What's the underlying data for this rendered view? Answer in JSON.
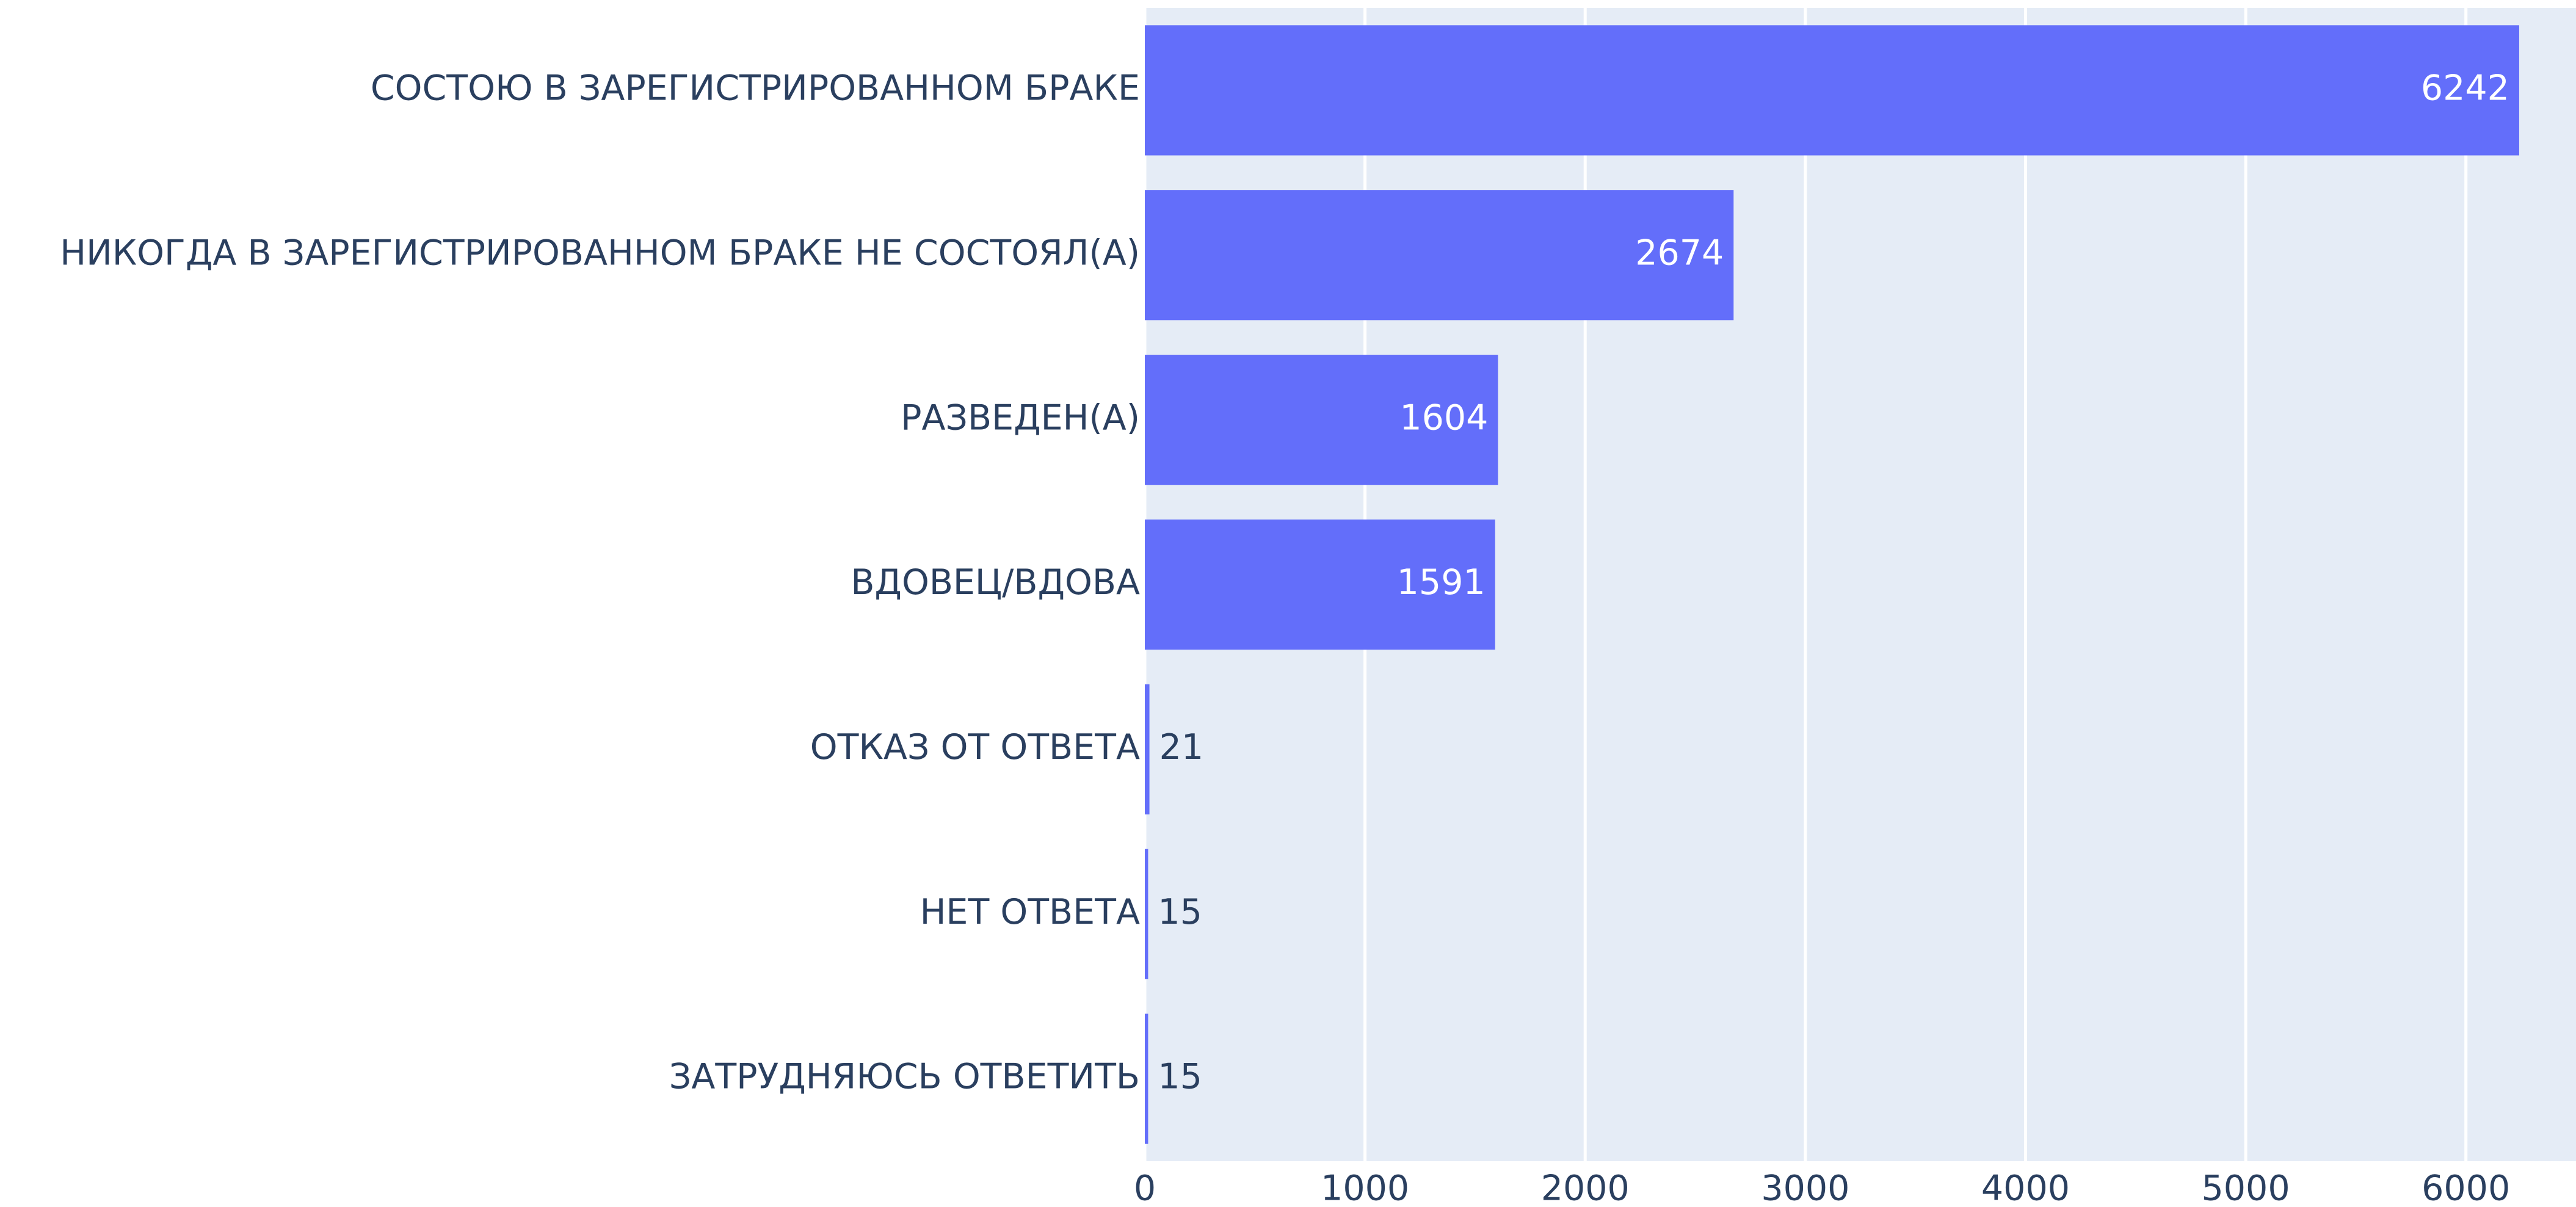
{
  "chart_data": {
    "type": "bar",
    "orientation": "horizontal",
    "categories": [
      "СОСТОЮ В ЗАРЕГИСТРИРОВАННОМ БРАКЕ",
      "НИКОГДА В ЗАРЕГИСТРИРОВАННОМ БРАКЕ НЕ СОСТОЯЛ(А)",
      "РАЗВЕДЕН(А)",
      "ВДОВЕЦ/ВДОВА",
      "ОТКАЗ ОТ ОТВЕТА",
      "НЕТ ОТВЕТА",
      "ЗАТРУДНЯЮСЬ ОТВЕТИТЬ"
    ],
    "values": [
      6242,
      2674,
      1604,
      1591,
      21,
      15,
      15
    ],
    "color": "#636efa",
    "xlim": [
      0,
      6500
    ],
    "xticks": [
      0,
      1000,
      2000,
      3000,
      4000,
      5000,
      6000
    ],
    "grid": true
  }
}
